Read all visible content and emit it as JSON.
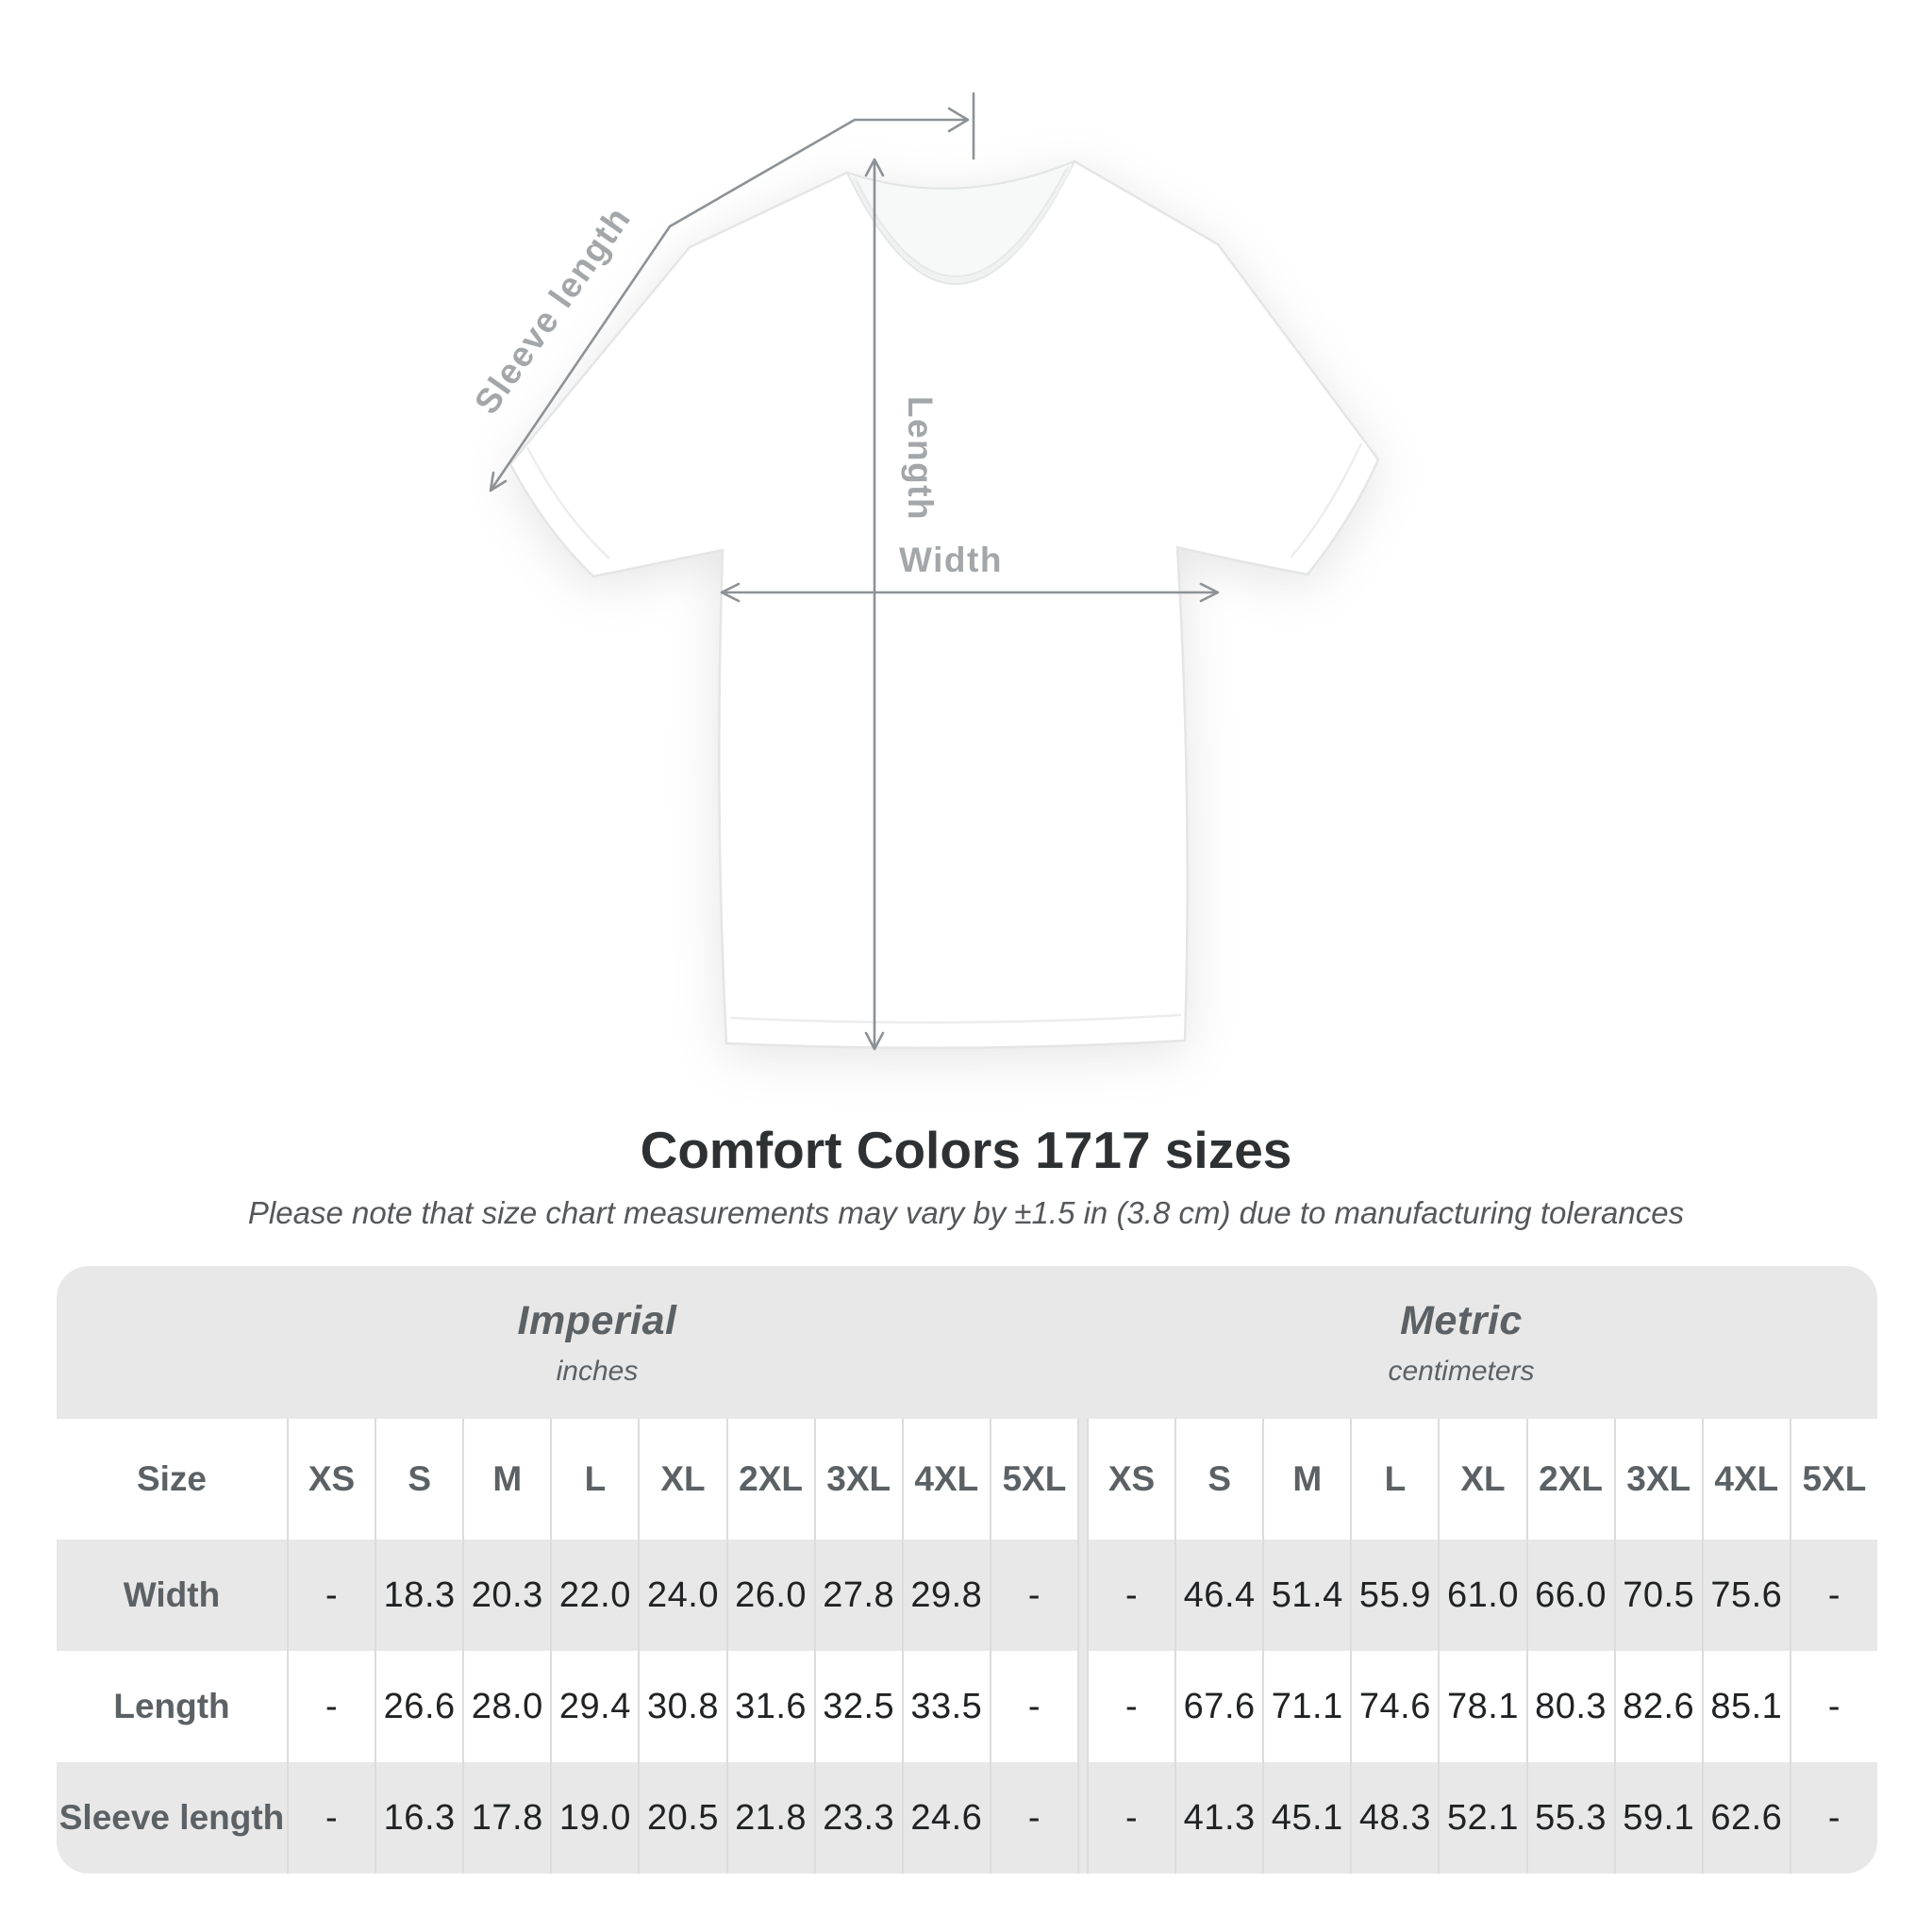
{
  "title": "Comfort Colors 1717 sizes",
  "subtitle": "Please note that size chart measurements may vary by ±1.5 in (3.8 cm) due to manufacturing tolerances",
  "diagram": {
    "sleeve_label": "Sleeve length",
    "length_label": "Length",
    "width_label": "Width",
    "line_color": "#8d9296",
    "label_color": "#a4a7aa",
    "shirt_outline_color": "#e4e5e6"
  },
  "colors": {
    "page_bg": "#ffffff",
    "title_color": "#2e3133",
    "subtitle_color": "#55575a",
    "table_bg": "#e8e8e8",
    "row_white": "#ffffff",
    "row_gray": "#e8e8e8",
    "separator": "#dcdcdc",
    "header_text": "#5b6165",
    "value_text": "#202224"
  },
  "table": {
    "size_label": "Size",
    "groups": [
      {
        "name": "Imperial",
        "unit": "inches"
      },
      {
        "name": "Metric",
        "unit": "centimeters"
      }
    ],
    "sizes": [
      "XS",
      "S",
      "M",
      "L",
      "XL",
      "2XL",
      "3XL",
      "4XL",
      "5XL"
    ],
    "rows": [
      {
        "label": "Width",
        "imperial": [
          "-",
          "18.3",
          "20.3",
          "22.0",
          "24.0",
          "26.0",
          "27.8",
          "29.8",
          "-"
        ],
        "metric": [
          "-",
          "46.4",
          "51.4",
          "55.9",
          "61.0",
          "66.0",
          "70.5",
          "75.6",
          "-"
        ]
      },
      {
        "label": "Length",
        "imperial": [
          "-",
          "26.6",
          "28.0",
          "29.4",
          "30.8",
          "31.6",
          "32.5",
          "33.5",
          "-"
        ],
        "metric": [
          "-",
          "67.6",
          "71.1",
          "74.6",
          "78.1",
          "80.3",
          "82.6",
          "85.1",
          "-"
        ]
      },
      {
        "label": "Sleeve length",
        "imperial": [
          "-",
          "16.3",
          "17.8",
          "19.0",
          "20.5",
          "21.8",
          "23.3",
          "24.6",
          "-"
        ],
        "metric": [
          "-",
          "41.3",
          "45.1",
          "48.3",
          "52.1",
          "55.3",
          "59.1",
          "62.6",
          "-"
        ]
      }
    ]
  },
  "chart_data": {
    "type": "table",
    "title": "Comfort Colors 1717 sizes",
    "note": "Please note that size chart measurements may vary by ±1.5 in (3.8 cm) due to manufacturing tolerances",
    "column_groups": [
      {
        "name": "Imperial",
        "unit": "inches",
        "sizes": [
          "XS",
          "S",
          "M",
          "L",
          "XL",
          "2XL",
          "3XL",
          "4XL",
          "5XL"
        ]
      },
      {
        "name": "Metric",
        "unit": "centimeters",
        "sizes": [
          "XS",
          "S",
          "M",
          "L",
          "XL",
          "2XL",
          "3XL",
          "4XL",
          "5XL"
        ]
      }
    ],
    "measurements": [
      {
        "label": "Width",
        "imperial_in": [
          null,
          18.3,
          20.3,
          22.0,
          24.0,
          26.0,
          27.8,
          29.8,
          null
        ],
        "metric_cm": [
          null,
          46.4,
          51.4,
          55.9,
          61.0,
          66.0,
          70.5,
          75.6,
          null
        ]
      },
      {
        "label": "Length",
        "imperial_in": [
          null,
          26.6,
          28.0,
          29.4,
          30.8,
          31.6,
          32.5,
          33.5,
          null
        ],
        "metric_cm": [
          null,
          67.6,
          71.1,
          74.6,
          78.1,
          80.3,
          82.6,
          85.1,
          null
        ]
      },
      {
        "label": "Sleeve length",
        "imperial_in": [
          null,
          16.3,
          17.8,
          19.0,
          20.5,
          21.8,
          23.3,
          24.6,
          null
        ],
        "metric_cm": [
          null,
          41.3,
          45.1,
          48.3,
          52.1,
          55.3,
          59.1,
          62.6,
          null
        ]
      }
    ]
  }
}
